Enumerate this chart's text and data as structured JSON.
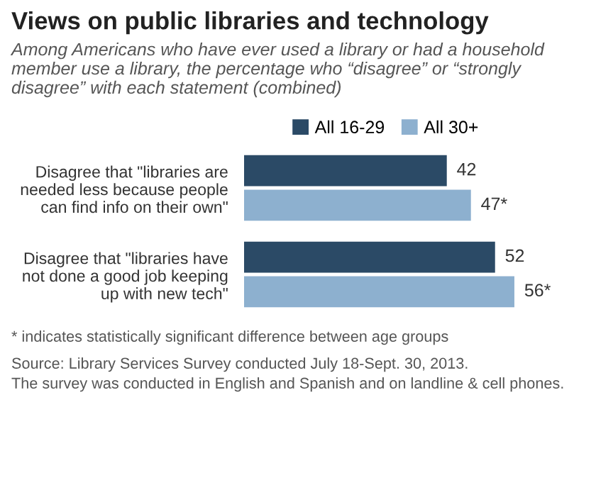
{
  "chart_data": {
    "type": "bar",
    "orientation": "horizontal",
    "title": "Views on public libraries and technology",
    "subtitle": "Among Americans who have ever used a library or had a household member use a library, the percentage who “disagree” or “strongly disagree” with each statement (combined)",
    "categories": [
      "Disagree that \"libraries are\nneeded less because people\ncan find info on their own\"",
      "Disagree that \"libraries have\nnot done a good job keeping\nup with new tech\""
    ],
    "series": [
      {
        "name": "All 16-29",
        "color": "#2b4a66",
        "values": [
          42,
          52
        ],
        "value_labels": [
          "42",
          "52"
        ]
      },
      {
        "name": "All 30+",
        "color": "#8db0cf",
        "values": [
          47,
          56
        ],
        "value_labels": [
          "47*",
          "56*"
        ]
      }
    ],
    "tick_labels": "y",
    "grid": false,
    "legend": "top",
    "annotations": [
      "* indicates statistically significant difference between age groups",
      "Source: Library Services Survey conducted July 18-Sept. 30, 2013.\nThe survey was conducted in English and Spanish and on landline & cell phones."
    ]
  }
}
